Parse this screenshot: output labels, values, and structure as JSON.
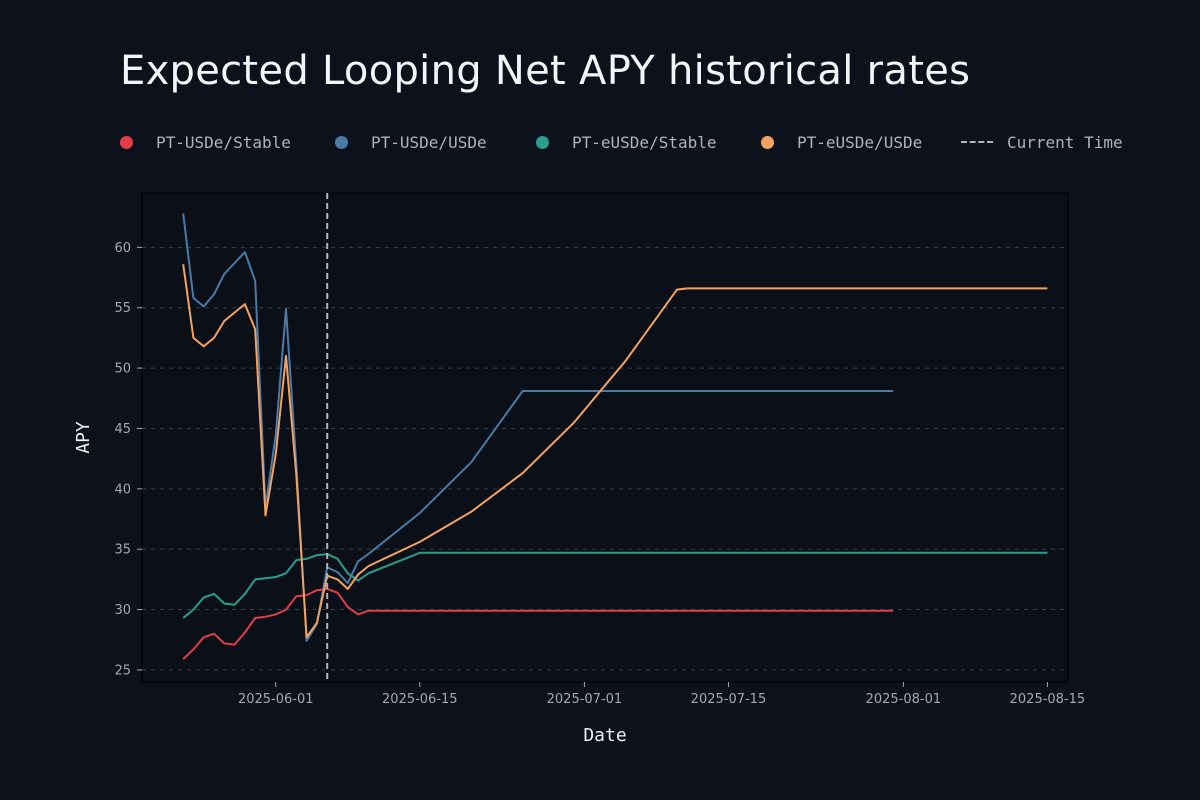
{
  "title": "Expected Looping Net APY historical rates",
  "legend": {
    "current_time_label": "Current Time"
  },
  "colors": {
    "background": "#0d111c",
    "grid": "#3a3f4b",
    "current_time": "#aeb3bf"
  },
  "chart_data": {
    "type": "line",
    "title": "Expected Looping Net APY historical rates",
    "xlabel": "Date",
    "ylabel": "APY",
    "x_axis_type": "date",
    "xlim": [
      "2025-05-19",
      "2025-08-17"
    ],
    "ylim": [
      24,
      64.5
    ],
    "yticks": [
      25,
      30,
      35,
      40,
      45,
      50,
      55,
      60
    ],
    "xticks": [
      "2025-06-01",
      "2025-06-15",
      "2025-07-01",
      "2025-07-15",
      "2025-08-01",
      "2025-08-15"
    ],
    "grid": "horizontal dashed",
    "legend_position": "top",
    "current_time": "2025-06-06",
    "series": [
      {
        "name": "PT-USDe/Stable",
        "color": "#e03e4b",
        "points": [
          [
            "2025-05-23",
            25.9
          ],
          [
            "2025-05-24",
            26.7
          ],
          [
            "2025-05-25",
            27.7
          ],
          [
            "2025-05-26",
            28.0
          ],
          [
            "2025-05-27",
            27.2
          ],
          [
            "2025-05-28",
            27.1
          ],
          [
            "2025-05-29",
            28.1
          ],
          [
            "2025-05-30",
            29.3
          ],
          [
            "2025-05-31",
            29.4
          ],
          [
            "2025-06-01",
            29.6
          ],
          [
            "2025-06-02",
            30.0
          ],
          [
            "2025-06-03",
            31.1
          ],
          [
            "2025-06-04",
            31.2
          ],
          [
            "2025-06-05",
            31.6
          ],
          [
            "2025-06-06",
            31.7
          ],
          [
            "2025-06-07",
            31.4
          ],
          [
            "2025-06-08",
            30.2
          ],
          [
            "2025-06-09",
            29.6
          ],
          [
            "2025-06-10",
            29.9
          ],
          [
            "2025-06-15",
            29.9
          ],
          [
            "2025-07-01",
            29.9
          ],
          [
            "2025-07-15",
            29.9
          ],
          [
            "2025-07-31",
            29.9
          ]
        ]
      },
      {
        "name": "PT-USDe/USDe",
        "color": "#4a7ba6",
        "points": [
          [
            "2025-05-23",
            62.8
          ],
          [
            "2025-05-24",
            55.8
          ],
          [
            "2025-05-25",
            55.1
          ],
          [
            "2025-05-26",
            56.1
          ],
          [
            "2025-05-27",
            57.8
          ],
          [
            "2025-05-28",
            58.7
          ],
          [
            "2025-05-29",
            59.6
          ],
          [
            "2025-05-30",
            57.2
          ],
          [
            "2025-05-31",
            38.5
          ],
          [
            "2025-06-01",
            44.5
          ],
          [
            "2025-06-02",
            54.9
          ],
          [
            "2025-06-03",
            42.0
          ],
          [
            "2025-06-04",
            27.4
          ],
          [
            "2025-06-05",
            28.8
          ],
          [
            "2025-06-06",
            33.5
          ],
          [
            "2025-06-07",
            33.1
          ],
          [
            "2025-06-08",
            32.2
          ],
          [
            "2025-06-09",
            34.0
          ],
          [
            "2025-06-10",
            34.6
          ],
          [
            "2025-06-15",
            38.0
          ],
          [
            "2025-06-20",
            42.2
          ],
          [
            "2025-06-25",
            48.1
          ],
          [
            "2025-07-01",
            48.1
          ],
          [
            "2025-07-15",
            48.1
          ],
          [
            "2025-07-31",
            48.1
          ]
        ]
      },
      {
        "name": "PT-eUSDe/Stable",
        "color": "#2a9d8f",
        "points": [
          [
            "2025-05-23",
            29.3
          ],
          [
            "2025-05-24",
            30.0
          ],
          [
            "2025-05-25",
            31.0
          ],
          [
            "2025-05-26",
            31.3
          ],
          [
            "2025-05-27",
            30.5
          ],
          [
            "2025-05-28",
            30.4
          ],
          [
            "2025-05-29",
            31.3
          ],
          [
            "2025-05-30",
            32.5
          ],
          [
            "2025-05-31",
            32.6
          ],
          [
            "2025-06-01",
            32.7
          ],
          [
            "2025-06-02",
            33.0
          ],
          [
            "2025-06-03",
            34.1
          ],
          [
            "2025-06-04",
            34.2
          ],
          [
            "2025-06-05",
            34.5
          ],
          [
            "2025-06-06",
            34.6
          ],
          [
            "2025-06-07",
            34.2
          ],
          [
            "2025-06-08",
            33.0
          ],
          [
            "2025-06-09",
            32.4
          ],
          [
            "2025-06-10",
            33.0
          ],
          [
            "2025-06-15",
            34.7
          ],
          [
            "2025-07-01",
            34.7
          ],
          [
            "2025-08-15",
            34.7
          ]
        ]
      },
      {
        "name": "PT-eUSDe/USDe",
        "color": "#f4a261",
        "points": [
          [
            "2025-05-23",
            58.6
          ],
          [
            "2025-05-24",
            52.5
          ],
          [
            "2025-05-25",
            51.8
          ],
          [
            "2025-05-26",
            52.5
          ],
          [
            "2025-05-27",
            53.9
          ],
          [
            "2025-05-28",
            54.6
          ],
          [
            "2025-05-29",
            55.3
          ],
          [
            "2025-05-30",
            53.2
          ],
          [
            "2025-05-31",
            37.8
          ],
          [
            "2025-06-01",
            42.9
          ],
          [
            "2025-06-02",
            51.0
          ],
          [
            "2025-06-03",
            41.2
          ],
          [
            "2025-06-04",
            27.7
          ],
          [
            "2025-06-05",
            28.9
          ],
          [
            "2025-06-06",
            32.8
          ],
          [
            "2025-06-07",
            32.5
          ],
          [
            "2025-06-08",
            31.7
          ],
          [
            "2025-06-09",
            32.9
          ],
          [
            "2025-06-10",
            33.6
          ],
          [
            "2025-06-15",
            35.6
          ],
          [
            "2025-06-20",
            38.1
          ],
          [
            "2025-06-25",
            41.3
          ],
          [
            "2025-06-30",
            45.5
          ],
          [
            "2025-07-05",
            50.6
          ],
          [
            "2025-07-10",
            56.5
          ],
          [
            "2025-07-11",
            56.6
          ],
          [
            "2025-08-01",
            56.6
          ],
          [
            "2025-08-15",
            56.6
          ]
        ]
      }
    ]
  }
}
